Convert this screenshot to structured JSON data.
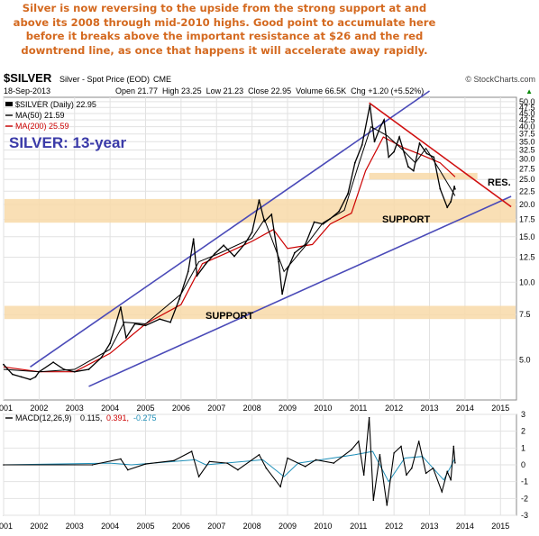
{
  "annotation": "Silver is now reversing to the upside from the strong support at and above its 2008 through mid-2010 highs. Good point to accumulate here before it breaks above the important resistance at $26 and the red downtrend line, as once that happens it will accelerate away rapidly.",
  "header": {
    "symbol": "$SILVER",
    "description": "Silver - Spot Price (EOD)",
    "exchange": "CME",
    "brand": "© StockCharts.com",
    "date": "18-Sep-2013",
    "ohlc": "Open 21.77  High 23.25  Low 21.23  Close 22.95  Volume 66.5K  Chg +1.20 (+5.52%)",
    "chg_arrow": "▲"
  },
  "legend": {
    "main": "$SILVER (Daily) 22.95",
    "ma50": "MA(50) 21.59",
    "ma200": "MA(200) 25.59"
  },
  "labels": {
    "chart_title": "SILVER: 13-year",
    "support_upper": "SUPPORT",
    "support_lower": "SUPPORT",
    "resistance": "RES."
  },
  "macd": {
    "label": "MACD(12,26,9)",
    "v1": "0.115,",
    "v2": "0.391,",
    "v3": "-0.275"
  },
  "colors": {
    "price": "#000000",
    "ma50": "#000000",
    "ma200": "#cc0000",
    "trendlines": "#4a4ab8",
    "downtrend": "#d01010",
    "support_band": "#f8d9a8",
    "title": "#3a3aa8",
    "annotation": "#d4691f",
    "macd_line": "#000000",
    "macd_signal": "#1f8fb8"
  },
  "chart_data": [
    {
      "type": "line",
      "scale": "log",
      "x_axis": [
        "2001",
        "2002",
        "2003",
        "2004",
        "2005",
        "2006",
        "2007",
        "2008",
        "2009",
        "2010",
        "2011",
        "2012",
        "2013",
        "2014",
        "2015"
      ],
      "y_ticks": [
        "5.0",
        "7.5",
        "10.0",
        "12.5",
        "15.0",
        "17.5",
        "20.0",
        "22.5",
        "25.0",
        "27.5",
        "30.0",
        "32.5",
        "35.0",
        "37.5",
        "40.0",
        "42.5",
        "45.0",
        "47.5",
        "50.0"
      ],
      "ylim": [
        3.5,
        52
      ],
      "series": [
        {
          "name": "$SILVER (Daily)",
          "points": [
            [
              2001.0,
              4.8
            ],
            [
              2001.25,
              4.4
            ],
            [
              2001.5,
              4.3
            ],
            [
              2001.75,
              4.2
            ],
            [
              2001.9,
              4.3
            ],
            [
              2002.0,
              4.5
            ],
            [
              2002.4,
              4.9
            ],
            [
              2002.7,
              4.6
            ],
            [
              2003.0,
              4.5
            ],
            [
              2003.4,
              4.6
            ],
            [
              2003.75,
              5.1
            ],
            [
              2004.0,
              5.8
            ],
            [
              2004.3,
              8.0
            ],
            [
              2004.45,
              6.1
            ],
            [
              2004.7,
              6.9
            ],
            [
              2005.0,
              6.8
            ],
            [
              2005.4,
              7.2
            ],
            [
              2005.7,
              7.0
            ],
            [
              2005.95,
              8.6
            ],
            [
              2006.2,
              11.0
            ],
            [
              2006.35,
              14.7
            ],
            [
              2006.45,
              10.6
            ],
            [
              2006.7,
              11.8
            ],
            [
              2006.95,
              12.9
            ],
            [
              2007.2,
              13.9
            ],
            [
              2007.5,
              12.6
            ],
            [
              2007.8,
              14.1
            ],
            [
              2008.0,
              15.6
            ],
            [
              2008.2,
              20.8
            ],
            [
              2008.35,
              17.2
            ],
            [
              2008.55,
              18.3
            ],
            [
              2008.75,
              12.0
            ],
            [
              2008.85,
              9.0
            ],
            [
              2009.0,
              11.2
            ],
            [
              2009.2,
              13.0
            ],
            [
              2009.5,
              14.0
            ],
            [
              2009.75,
              17.1
            ],
            [
              2010.0,
              16.8
            ],
            [
              2010.2,
              17.6
            ],
            [
              2010.45,
              18.8
            ],
            [
              2010.7,
              22.0
            ],
            [
              2010.9,
              29.0
            ],
            [
              2011.1,
              34.0
            ],
            [
              2011.32,
              48.5
            ],
            [
              2011.45,
              35.0
            ],
            [
              2011.6,
              39.5
            ],
            [
              2011.72,
              42.5
            ],
            [
              2011.85,
              30.5
            ],
            [
              2012.0,
              32.0
            ],
            [
              2012.15,
              36.5
            ],
            [
              2012.4,
              28.0
            ],
            [
              2012.55,
              27.0
            ],
            [
              2012.72,
              34.5
            ],
            [
              2012.92,
              31.5
            ],
            [
              2013.12,
              30.5
            ],
            [
              2013.3,
              23.0
            ],
            [
              2013.5,
              19.5
            ],
            [
              2013.6,
              20.5
            ],
            [
              2013.7,
              23.5
            ],
            [
              2013.72,
              22.95
            ]
          ]
        },
        {
          "name": "MA(50)",
          "points": [
            [
              2001.0,
              4.6
            ],
            [
              2002.0,
              4.5
            ],
            [
              2003.0,
              4.6
            ],
            [
              2004.0,
              5.5
            ],
            [
              2004.4,
              7.0
            ],
            [
              2005.0,
              6.9
            ],
            [
              2006.0,
              9.0
            ],
            [
              2006.5,
              12.0
            ],
            [
              2007.0,
              12.8
            ],
            [
              2008.0,
              14.8
            ],
            [
              2008.35,
              17.5
            ],
            [
              2008.9,
              11.0
            ],
            [
              2009.5,
              13.8
            ],
            [
              2010.0,
              17.0
            ],
            [
              2010.6,
              19.0
            ],
            [
              2011.0,
              28.5
            ],
            [
              2011.35,
              40.0
            ],
            [
              2011.8,
              37.0
            ],
            [
              2012.2,
              33.0
            ],
            [
              2012.6,
              29.0
            ],
            [
              2012.9,
              33.0
            ],
            [
              2013.3,
              27.0
            ],
            [
              2013.72,
              21.59
            ]
          ]
        },
        {
          "name": "MA(200)",
          "points": [
            [
              2001.0,
              4.7
            ],
            [
              2002.0,
              4.5
            ],
            [
              2003.0,
              4.5
            ],
            [
              2004.0,
              5.3
            ],
            [
              2005.0,
              6.9
            ],
            [
              2006.0,
              8.2
            ],
            [
              2006.6,
              11.8
            ],
            [
              2007.3,
              13.0
            ],
            [
              2008.0,
              14.4
            ],
            [
              2008.6,
              16.0
            ],
            [
              2009.0,
              13.5
            ],
            [
              2009.7,
              14.0
            ],
            [
              2010.2,
              16.8
            ],
            [
              2010.8,
              18.5
            ],
            [
              2011.2,
              27.0
            ],
            [
              2011.7,
              36.5
            ],
            [
              2012.3,
              33.0
            ],
            [
              2012.8,
              31.0
            ],
            [
              2013.3,
              29.0
            ],
            [
              2013.72,
              25.59
            ]
          ]
        }
      ],
      "support_bands": [
        [
          17.0,
          21.0
        ],
        [
          7.2,
          8.1
        ]
      ],
      "resistance_band": [
        25.0,
        26.5
      ],
      "trendlines": [
        {
          "name": "upper",
          "color": "#4a4ab8",
          "points": [
            [
              2001.75,
              4.7
            ],
            [
              2013.0,
              55.0
            ]
          ]
        },
        {
          "name": "lower",
          "color": "#4a4ab8",
          "points": [
            [
              2003.4,
              3.95
            ],
            [
              2015.3,
              21.5
            ]
          ]
        },
        {
          "name": "downtrend",
          "color": "#d01010",
          "points": [
            [
              2011.3,
              49.5
            ],
            [
              2015.3,
              19.6
            ]
          ]
        }
      ]
    },
    {
      "type": "line",
      "x_axis": [
        "2001",
        "2002",
        "2003",
        "2004",
        "2005",
        "2006",
        "2007",
        "2008",
        "2009",
        "2010",
        "2011",
        "2012",
        "2013",
        "2014",
        "2015"
      ],
      "y_ticks": [
        "3",
        "2",
        "1",
        "0",
        "-1",
        "-2",
        "-3"
      ],
      "ylim": [
        -3,
        3
      ],
      "series": [
        {
          "name": "MACD",
          "points": [
            [
              2001.0,
              0.0
            ],
            [
              2003.5,
              0.0
            ],
            [
              2004.3,
              0.35
            ],
            [
              2004.5,
              -0.3
            ],
            [
              2005.0,
              0.05
            ],
            [
              2005.8,
              0.25
            ],
            [
              2006.3,
              0.8
            ],
            [
              2006.5,
              -0.7
            ],
            [
              2006.8,
              0.2
            ],
            [
              2007.3,
              0.1
            ],
            [
              2007.6,
              -0.3
            ],
            [
              2008.2,
              0.6
            ],
            [
              2008.4,
              -0.2
            ],
            [
              2008.8,
              -1.3
            ],
            [
              2009.0,
              0.4
            ],
            [
              2009.5,
              -0.1
            ],
            [
              2009.8,
              0.3
            ],
            [
              2010.3,
              0.1
            ],
            [
              2010.8,
              0.9
            ],
            [
              2011.0,
              1.4
            ],
            [
              2011.15,
              -0.6
            ],
            [
              2011.3,
              2.8
            ],
            [
              2011.42,
              -2.1
            ],
            [
              2011.6,
              0.6
            ],
            [
              2011.8,
              -2.4
            ],
            [
              2012.0,
              0.7
            ],
            [
              2012.2,
              1.1
            ],
            [
              2012.35,
              -0.6
            ],
            [
              2012.5,
              -0.2
            ],
            [
              2012.7,
              1.4
            ],
            [
              2012.9,
              -0.5
            ],
            [
              2013.1,
              -0.2
            ],
            [
              2013.35,
              -1.6
            ],
            [
              2013.5,
              -0.4
            ],
            [
              2013.6,
              -0.9
            ],
            [
              2013.68,
              1.1
            ],
            [
              2013.72,
              0.115
            ]
          ]
        },
        {
          "name": "Signal",
          "points": [
            [
              2001.0,
              0.0
            ],
            [
              2004.0,
              0.1
            ],
            [
              2004.6,
              0.0
            ],
            [
              2006.4,
              0.3
            ],
            [
              2006.7,
              0.0
            ],
            [
              2008.3,
              0.3
            ],
            [
              2008.9,
              -0.7
            ],
            [
              2009.3,
              0.1
            ],
            [
              2010.9,
              0.6
            ],
            [
              2011.4,
              0.8
            ],
            [
              2011.85,
              -1.0
            ],
            [
              2012.3,
              0.4
            ],
            [
              2012.8,
              0.5
            ],
            [
              2013.4,
              -0.9
            ],
            [
              2013.72,
              0.391
            ]
          ]
        }
      ]
    }
  ]
}
